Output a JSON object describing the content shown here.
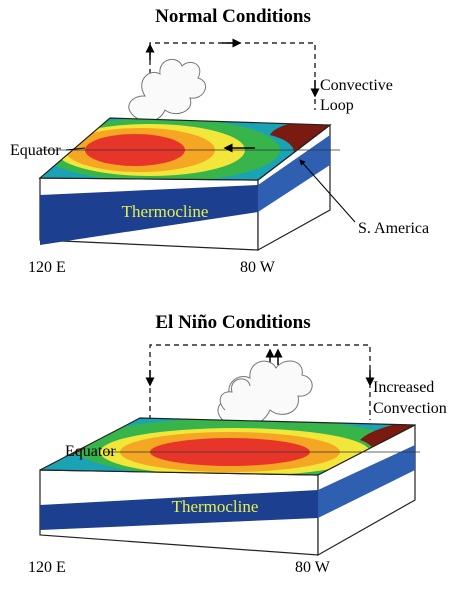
{
  "panels": [
    {
      "title": "Normal Conditions",
      "loop_label": [
        "Convective",
        "Loop"
      ],
      "equator": "Equator",
      "thermocline": "Thermocline",
      "continent": "S. America",
      "west": "120 E",
      "east": "80 W"
    },
    {
      "title": "El Niño Conditions",
      "loop_label": [
        "Increased",
        "Convection"
      ],
      "equator": "Equator",
      "thermocline": "Thermocline",
      "west": "120 E",
      "east": "80 W"
    }
  ]
}
